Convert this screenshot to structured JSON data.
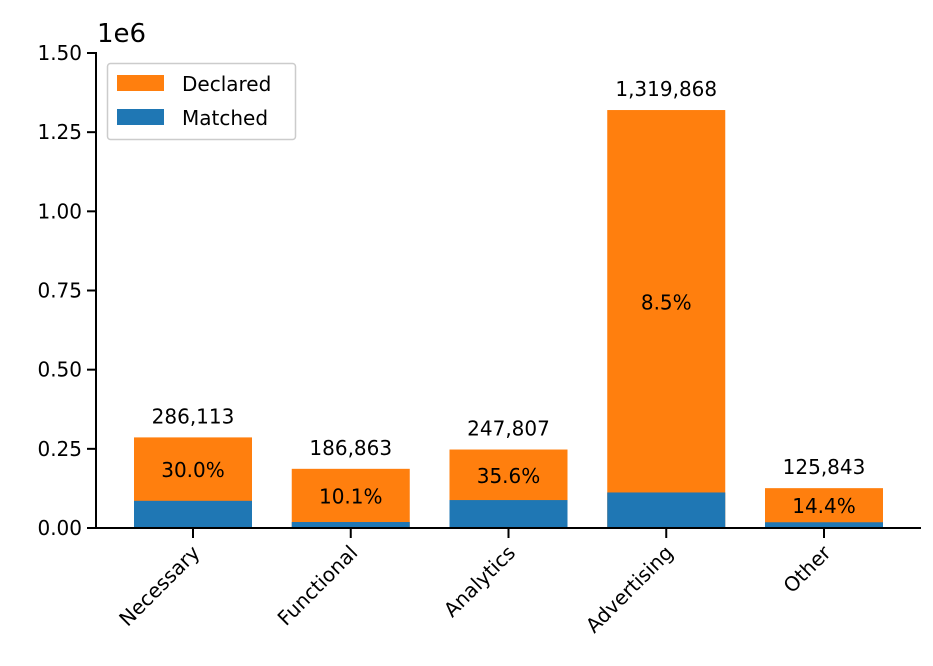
{
  "chart_data": {
    "type": "bar",
    "stacked": false,
    "overlaid": true,
    "title": "",
    "xlabel": "",
    "ylabel": "",
    "y_scale_label": "1e6",
    "ylim": [
      0,
      1500000
    ],
    "y_ticks": [
      0,
      250000,
      500000,
      750000,
      1000000,
      1250000,
      1500000
    ],
    "y_tick_labels": [
      "0.00",
      "0.25",
      "0.50",
      "0.75",
      "1.00",
      "1.25",
      "1.50"
    ],
    "categories": [
      "Necessary",
      "Functional",
      "Analytics",
      "Advertising",
      "Other"
    ],
    "series": [
      {
        "name": "Declared",
        "color": "#ff7f0e",
        "values": [
          286113,
          186863,
          247807,
          1319868,
          125843
        ]
      },
      {
        "name": "Matched",
        "color": "#1f77b4",
        "values": [
          85834,
          18873,
          88219,
          112189,
          18121
        ]
      }
    ],
    "total_labels": [
      "286,113",
      "186,863",
      "247,807",
      "1,319,868",
      "125,843"
    ],
    "percent_labels": [
      "30.0%",
      "10.1%",
      "35.6%",
      "8.5%",
      "14.4%"
    ],
    "legend": {
      "placement": "top-left",
      "entries": [
        "Declared",
        "Matched"
      ]
    },
    "grid": false
  }
}
